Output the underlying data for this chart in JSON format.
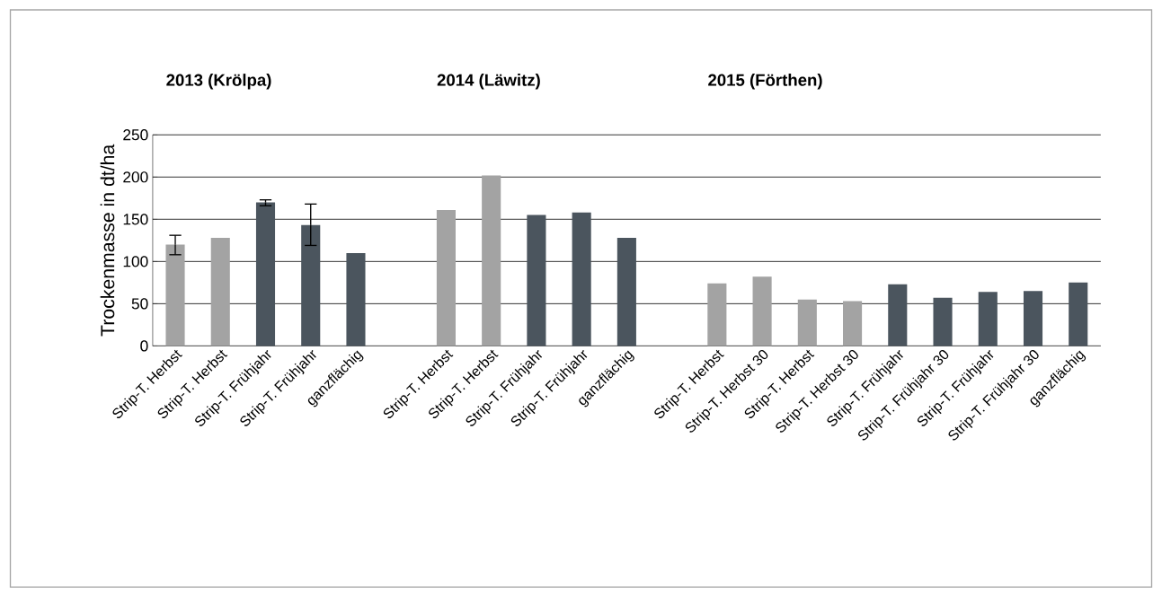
{
  "chart_data": {
    "type": "bar",
    "ylabel": "Trockenmasse in dt/ha",
    "annotations": [
      "2013 (Krölpa)",
      "2014 (Läwitz)",
      "2015 (Förthen)"
    ],
    "categories": [
      "Strip-T. Herbst",
      "Strip-T. Herbst",
      "Strip-T. Frühjahr",
      "Strip-T. Frühjahr",
      "ganzflächig",
      null,
      "Strip-T. Herbst",
      "Strip-T. Herbst",
      "Strip-T. Frühjahr",
      "Strip-T. Frühjahr",
      "ganzflächig",
      null,
      "Strip-T. Herbst",
      "Strip-T. Herbst 30",
      "Strip-T. Herbst",
      "Strip-T. Herbst 30",
      "Strip-T. Frühjahr",
      "Strip-T. Frühjahr 30",
      "Strip-T. Frühjahr",
      "Strip-T. Frühjahr 30",
      "ganzflächig"
    ],
    "values": [
      120,
      128,
      170,
      143,
      110,
      null,
      161,
      202,
      155,
      158,
      128,
      null,
      74,
      82,
      55,
      53,
      73,
      57,
      64,
      65,
      75
    ],
    "colors": [
      "#a3a3a3",
      "#a3a3a3",
      "#4b555e",
      "#4b555e",
      "#4b555e",
      null,
      "#a3a3a3",
      "#a3a3a3",
      "#4b555e",
      "#4b555e",
      "#4b555e",
      null,
      "#a3a3a3",
      "#a3a3a3",
      "#a3a3a3",
      "#a3a3a3",
      "#4b555e",
      "#4b555e",
      "#4b555e",
      "#4b555e",
      "#4b555e"
    ],
    "errors": [
      [
        108,
        131
      ],
      null,
      [
        166,
        173
      ],
      [
        119,
        168
      ],
      null,
      null,
      null,
      null,
      null,
      null,
      null,
      null,
      null,
      null,
      null,
      null,
      null,
      null,
      null,
      null,
      null
    ],
    "ylim": [
      0,
      250
    ],
    "yticks": [
      0,
      50,
      100,
      150,
      200,
      250
    ],
    "grid": "y"
  }
}
